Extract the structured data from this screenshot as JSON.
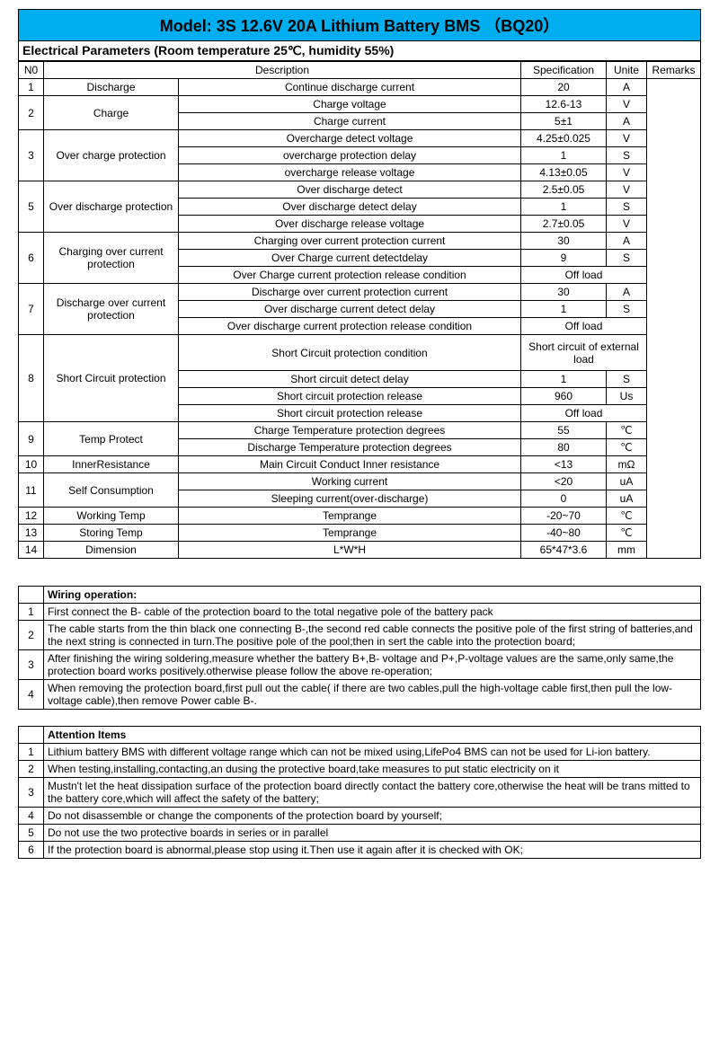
{
  "title": "Model:  3S 12.6V 20A Lithium Battery  BMS （BQ20）",
  "paramsHeader": "Electrical Parameters (Room temperature 25℃, humidity 55%)",
  "colHeaders": {
    "no": "N0",
    "desc": "Description",
    "spec": "Specification",
    "unit": "Unite",
    "rem": "Remarks"
  },
  "rows": [
    {
      "no": "1",
      "cat": "Discharge",
      "catSpan": 1,
      "desc": "Continue discharge current",
      "spec": "20",
      "unit": "A"
    },
    {
      "no": "2",
      "cat": "Charge",
      "catSpan": 2,
      "desc": "Charge voltage",
      "spec": "12.6-13",
      "unit": "V"
    },
    {
      "desc": "Charge current",
      "spec": "5±1",
      "unit": "A"
    },
    {
      "no": "3",
      "cat": "Over charge protection",
      "catSpan": 3,
      "desc": "Overcharge detect voltage",
      "spec": "4.25±0.025",
      "unit": "V"
    },
    {
      "desc": "overcharge protection delay",
      "spec": "1",
      "unit": "S"
    },
    {
      "desc": "overcharge release voltage",
      "spec": "4.13±0.05",
      "unit": "V"
    },
    {
      "no": "5",
      "cat": "Over discharge protection",
      "catSpan": 3,
      "desc": "Over discharge detect",
      "spec": "2.5±0.05",
      "unit": "V"
    },
    {
      "desc": "Over discharge detect delay",
      "spec": "1",
      "unit": "S"
    },
    {
      "desc": "Over discharge release voltage",
      "spec": "2.7±0.05",
      "unit": "V"
    },
    {
      "no": "6",
      "cat": "Charging over current protection",
      "catSpan": 3,
      "desc": "Charging over current protection current",
      "spec": "30",
      "unit": "A"
    },
    {
      "desc": "Over Charge current detectdelay",
      "spec": "9",
      "unit": "S"
    },
    {
      "desc": "Over Charge current protection release condition",
      "spec": "Off load",
      "specSpan": 2
    },
    {
      "no": "7",
      "cat": "Discharge over current protection",
      "catSpan": 3,
      "desc": "Discharge over current protection current",
      "spec": "30",
      "unit": "A"
    },
    {
      "desc": "Over discharge current detect delay",
      "spec": "1",
      "unit": "S"
    },
    {
      "desc": "Over discharge current protection release condition",
      "spec": "Off load",
      "specSpan": 2
    },
    {
      "no": "8",
      "cat": "Short Circuit protection",
      "catSpan": 4,
      "desc": "Short Circuit protection condition",
      "spec": "Short circuit of external load",
      "specSpan": 2,
      "tall": true
    },
    {
      "desc": "Short circuit detect delay",
      "spec": "1",
      "unit": "S"
    },
    {
      "desc": "Short circuit protection release",
      "spec": "960",
      "unit": "Us"
    },
    {
      "desc": "Short circuit protection release",
      "spec": "Off load",
      "specSpan": 2
    },
    {
      "no": "9",
      "cat": "Temp Protect",
      "catSpan": 2,
      "desc": "Charge Temperature protection degrees",
      "spec": "55",
      "unit": "℃"
    },
    {
      "desc": "Discharge Temperature protection degrees",
      "spec": "80",
      "unit": "℃"
    },
    {
      "no": "10",
      "cat": "InnerResistance",
      "catSpan": 1,
      "desc": "Main Circuit Conduct Inner resistance",
      "spec": "<13",
      "unit": "mΩ"
    },
    {
      "no": "11",
      "cat": "Self Consumption",
      "catSpan": 2,
      "desc": "Working current",
      "spec": "<20",
      "unit": "uA"
    },
    {
      "desc": "Sleeping current(over-discharge)",
      "spec": "0",
      "unit": "uA"
    },
    {
      "no": "12",
      "cat": "Working Temp",
      "catSpan": 1,
      "desc": "Temprange",
      "spec": "-20~70",
      "unit": "℃"
    },
    {
      "no": "13",
      "cat": "Storing Temp",
      "catSpan": 1,
      "desc": "Temprange",
      "spec": "-40~80",
      "unit": "℃"
    },
    {
      "no": "14",
      "cat": "Dimension",
      "catSpan": 1,
      "desc": "L*W*H",
      "spec": "65*47*3.6",
      "unit": "mm"
    }
  ],
  "wiringTitle": "Wiring operation:",
  "wiring": [
    "First connect the B- cable of the protection board to the total negative pole of the battery pack",
    "The cable starts from the thin black one connecting B-,the second red cable connects the positive pole of the first string of batteries,and the next string is connected in turn.The positive pole of the pool;then in sert the cable into the protection board;",
    "After finishing the wiring soldering,measure whether the battery B+,B- voltage and P+,P-voltage values are the same,only same,the protection board works positively.otherwise please follow the above re-operation;",
    "When removing the protection board,first pull out the cable( if there are two cables,pull the high-voltage cable first,then pull the low-voltage cable),then remove Power cable B-."
  ],
  "attentionTitle": "Attention Items",
  "attention": [
    "Lithium battery BMS with different voltage range which can not be mixed using,LifePo4 BMS can not be used for Li-ion battery.",
    "When testing,installing,contacting,an dusing the protective board,take measures to put static electricity on it",
    "Mustn't let the heat dissipation surface of the protection board directly contact the battery core,otherwise the heat will be trans mitted to the battery core,which will affect the safety of the battery;",
    "Do not disassemble or change the components of the protection board by yourself;",
    "Do not use the two protective boards in series or in parallel",
    "If the protection board is abnormal,please stop using it.Then use it again after it is checked with OK;"
  ]
}
